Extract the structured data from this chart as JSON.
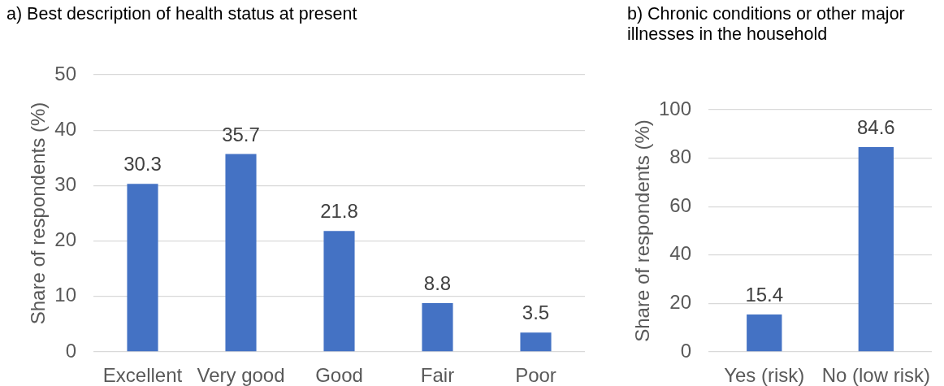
{
  "chart_data": [
    {
      "type": "bar",
      "title": "a) Best description of health status at present",
      "categories": [
        "Excellent",
        "Very good",
        "Good",
        "Fair",
        "Poor"
      ],
      "values": [
        30.3,
        35.7,
        21.8,
        8.8,
        3.5
      ],
      "color": "#4472c4",
      "ylabel": "Share of respondents (%)",
      "ylim": [
        0,
        50
      ],
      "yticks": [
        0,
        10,
        20,
        30,
        40,
        50
      ],
      "grid": "y",
      "data_labels": true
    },
    {
      "type": "bar",
      "title": "b) Chronic conditions or other major illnesses in the household",
      "categories": [
        "Yes (risk)",
        "No (low risk)"
      ],
      "values": [
        15.4,
        84.6
      ],
      "color": "#4472c4",
      "ylabel": "Share of respondents (%)",
      "ylim": [
        0,
        100
      ],
      "yticks": [
        0,
        20,
        40,
        60,
        80,
        100
      ],
      "grid": "y",
      "data_labels": true
    }
  ]
}
